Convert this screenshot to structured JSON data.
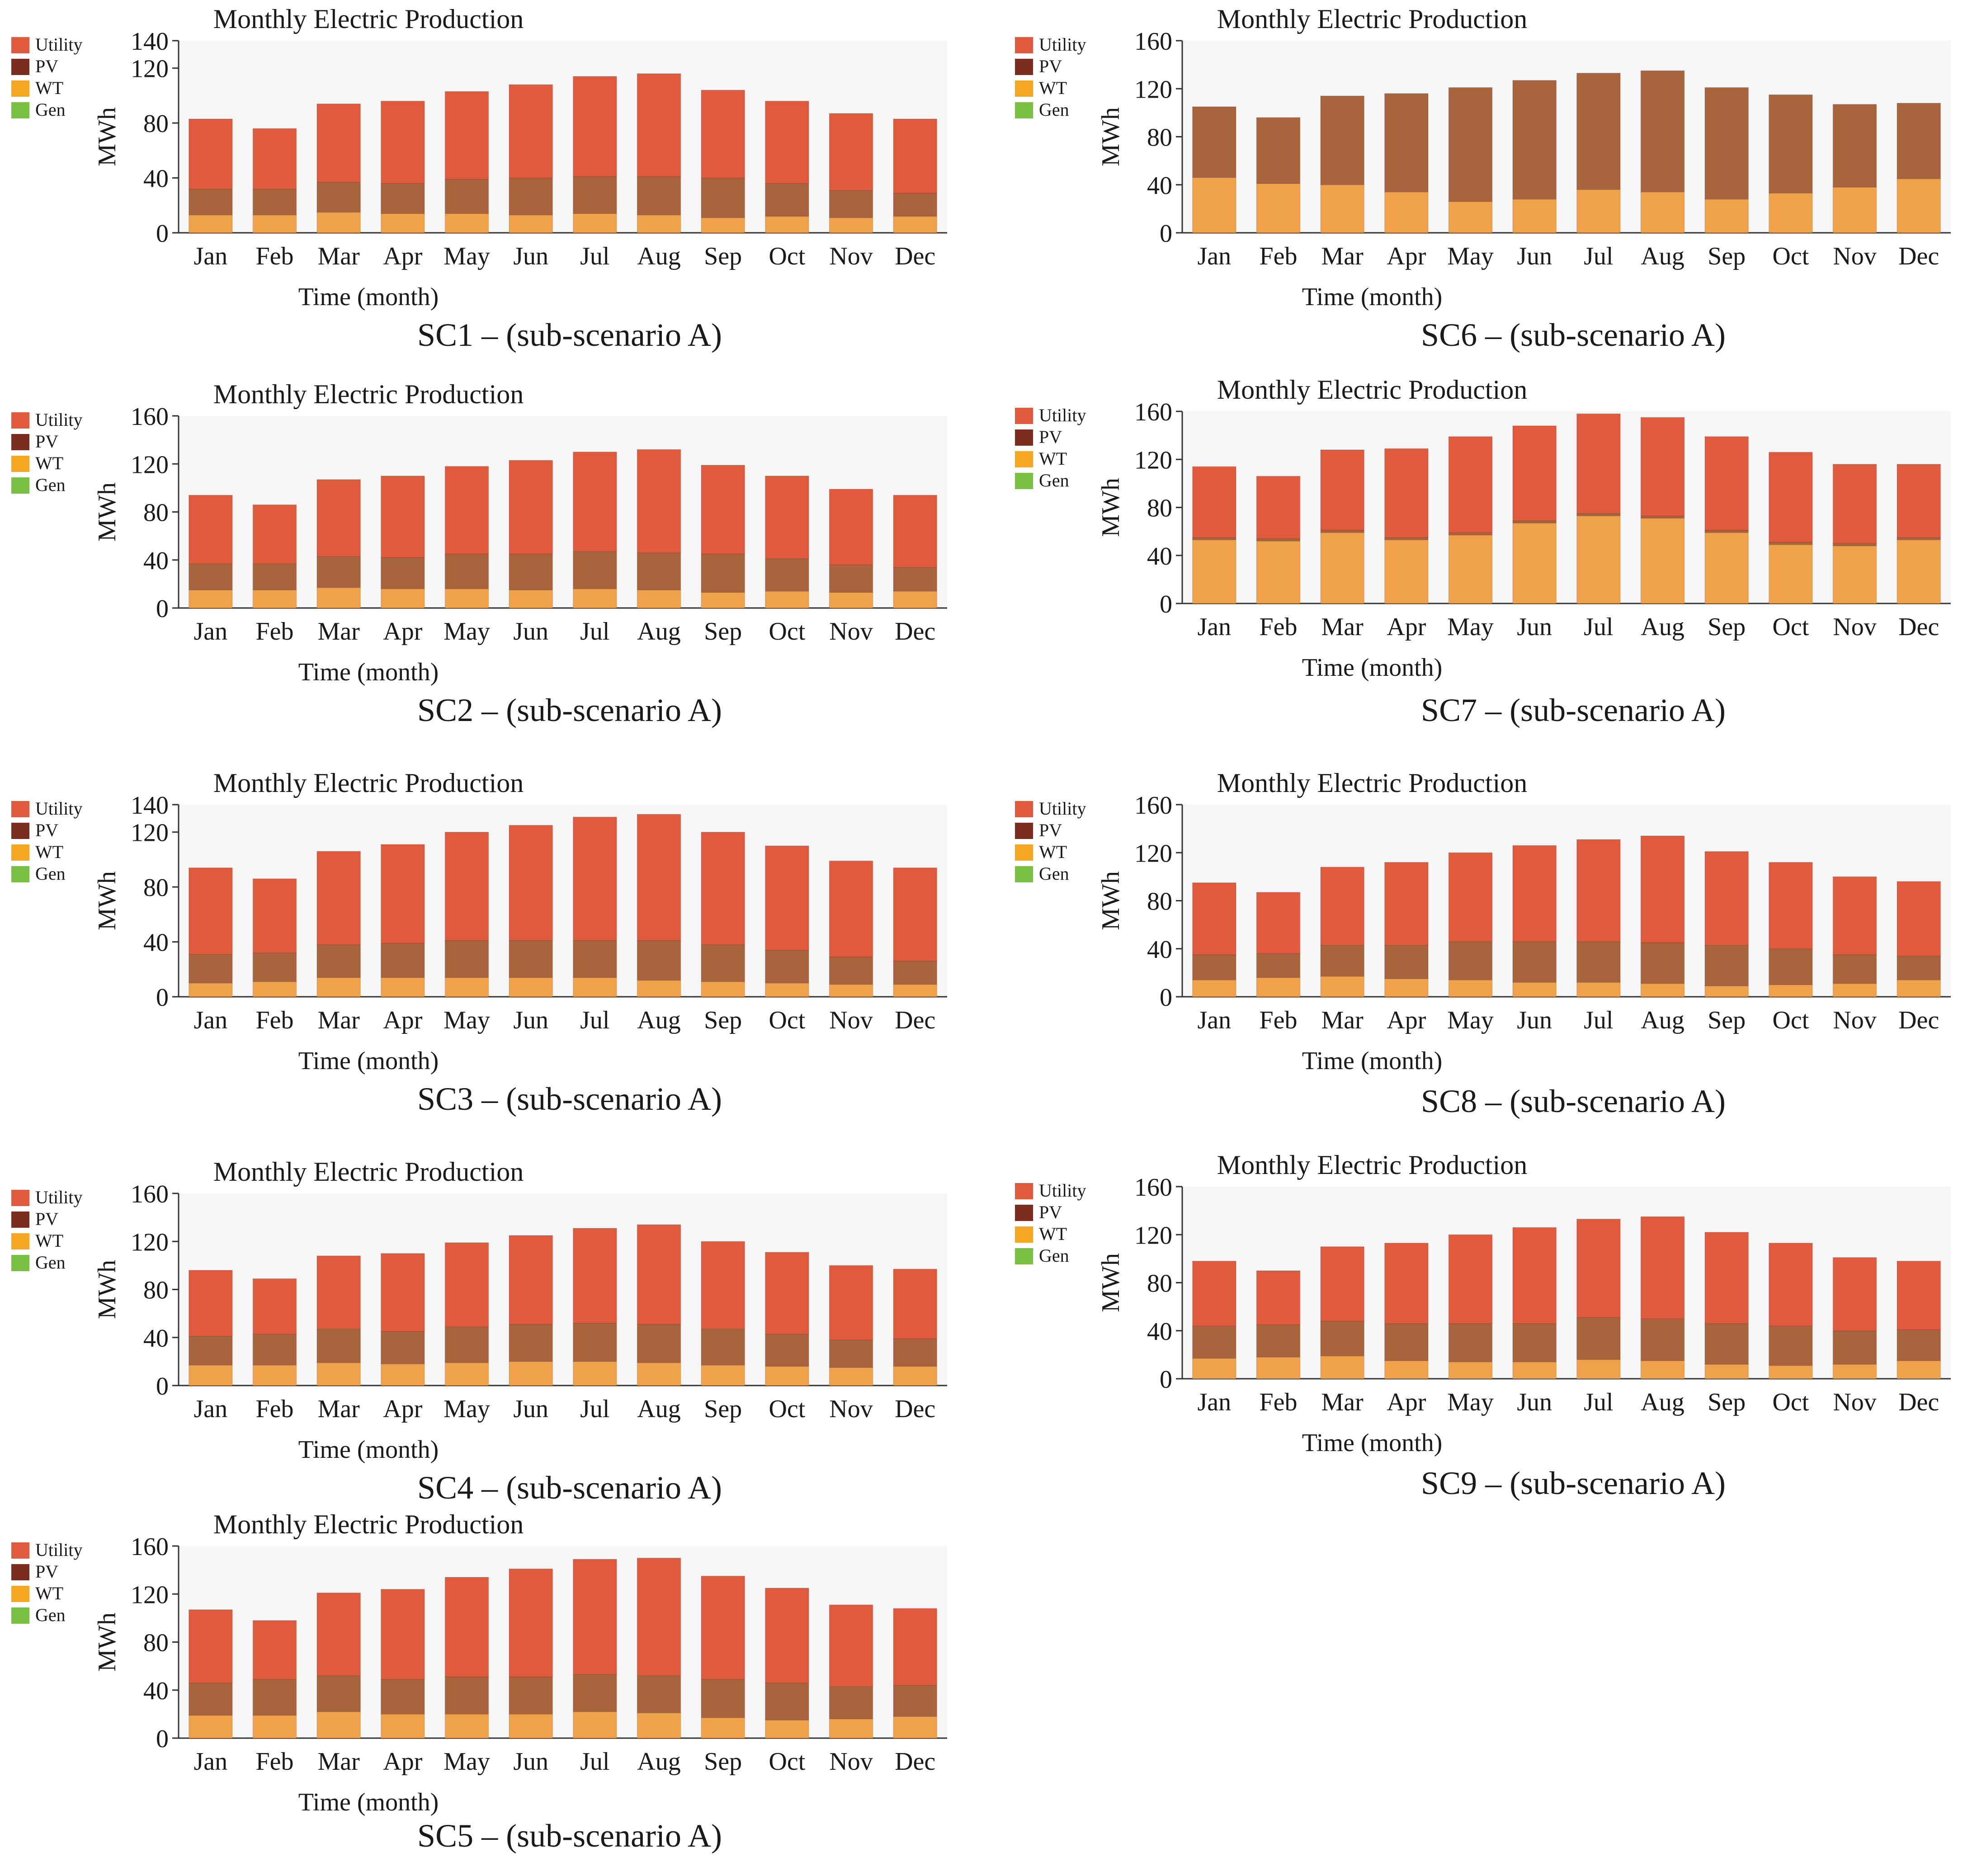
{
  "colors": {
    "utility": "#e05b3d",
    "pv": "#a8643d",
    "wt": "#f0a24a",
    "gen": "#7ac143",
    "legend_utility": "#e05b3d",
    "legend_pv": "#7b2e1f",
    "legend_wt": "#f5a623",
    "legend_gen": "#7ac143",
    "plot_bg": "#f6f6f6"
  },
  "legend": [
    "Utility",
    "PV",
    "WT",
    "Gen"
  ],
  "chart_data": [
    {
      "type": "bar",
      "stacked": true,
      "panel": "SC1",
      "title": "Monthly Electric Production",
      "xlabel": "Time (month)",
      "ylabel": "MWh",
      "caption": "SC1 – (sub-scenario A)",
      "ylim": [
        0,
        140
      ],
      "yticks": [
        0,
        40,
        80,
        120,
        140
      ],
      "categories": [
        "Jan",
        "Feb",
        "Mar",
        "Apr",
        "May",
        "Jun",
        "Jul",
        "Aug",
        "Sep",
        "Oct",
        "Nov",
        "Dec"
      ],
      "series": [
        {
          "name": "WT",
          "values": [
            13,
            13,
            15,
            14,
            14,
            13,
            14,
            13,
            11,
            12,
            11,
            12
          ]
        },
        {
          "name": "PV",
          "values": [
            19,
            19,
            22,
            22,
            25,
            27,
            27,
            28,
            29,
            24,
            20,
            17
          ]
        },
        {
          "name": "Utility",
          "values": [
            51,
            44,
            57,
            60,
            64,
            68,
            73,
            75,
            64,
            60,
            56,
            54
          ]
        }
      ]
    },
    {
      "type": "bar",
      "stacked": true,
      "panel": "SC2",
      "title": "Monthly Electric Production",
      "xlabel": "Time (month)",
      "ylabel": "MWh",
      "caption": "SC2 – (sub-scenario A)",
      "ylim": [
        0,
        160
      ],
      "yticks": [
        0,
        40,
        80,
        120,
        160
      ],
      "categories": [
        "Jan",
        "Feb",
        "Mar",
        "Apr",
        "May",
        "Jun",
        "Jul",
        "Aug",
        "Sep",
        "Oct",
        "Nov",
        "Dec"
      ],
      "series": [
        {
          "name": "WT",
          "values": [
            15,
            15,
            17,
            16,
            16,
            15,
            16,
            15,
            13,
            14,
            13,
            14
          ]
        },
        {
          "name": "PV",
          "values": [
            22,
            22,
            26,
            26,
            29,
            30,
            31,
            31,
            32,
            27,
            23,
            20
          ]
        },
        {
          "name": "Utility",
          "values": [
            57,
            49,
            64,
            68,
            73,
            78,
            83,
            86,
            74,
            69,
            63,
            60
          ]
        }
      ]
    },
    {
      "type": "bar",
      "stacked": true,
      "panel": "SC3",
      "title": "Monthly Electric Production",
      "xlabel": "Time (month)",
      "ylabel": "MWh",
      "caption": "SC3 – (sub-scenario A)",
      "ylim": [
        0,
        140
      ],
      "yticks": [
        0,
        40,
        80,
        120,
        140
      ],
      "categories": [
        "Jan",
        "Feb",
        "Mar",
        "Apr",
        "May",
        "Jun",
        "Jul",
        "Aug",
        "Sep",
        "Oct",
        "Nov",
        "Dec"
      ],
      "series": [
        {
          "name": "WT",
          "values": [
            10,
            11,
            14,
            14,
            14,
            14,
            14,
            12,
            11,
            10,
            9,
            9
          ]
        },
        {
          "name": "PV",
          "values": [
            21,
            21,
            24,
            25,
            27,
            27,
            27,
            29,
            27,
            24,
            20,
            17
          ]
        },
        {
          "name": "Utility",
          "values": [
            63,
            54,
            68,
            72,
            79,
            84,
            90,
            92,
            82,
            76,
            70,
            68
          ]
        }
      ]
    },
    {
      "type": "bar",
      "stacked": true,
      "panel": "SC4",
      "title": "Monthly Electric Production",
      "xlabel": "Time (month)",
      "ylabel": "MWh",
      "caption": "SC4 – (sub-scenario A)",
      "ylim": [
        0,
        160
      ],
      "yticks": [
        0,
        40,
        80,
        120,
        160
      ],
      "categories": [
        "Jan",
        "Feb",
        "Mar",
        "Apr",
        "May",
        "Jun",
        "Jul",
        "Aug",
        "Sep",
        "Oct",
        "Nov",
        "Dec"
      ],
      "series": [
        {
          "name": "WT",
          "values": [
            17,
            17,
            19,
            18,
            19,
            20,
            20,
            19,
            17,
            16,
            15,
            16
          ]
        },
        {
          "name": "PV",
          "values": [
            24,
            26,
            28,
            27,
            30,
            31,
            32,
            32,
            30,
            27,
            23,
            23
          ]
        },
        {
          "name": "Utility",
          "values": [
            55,
            46,
            61,
            65,
            70,
            74,
            79,
            83,
            73,
            68,
            62,
            58
          ]
        }
      ]
    },
    {
      "type": "bar",
      "stacked": true,
      "panel": "SC5",
      "title": "Monthly Electric Production",
      "xlabel": "Time (month)",
      "ylabel": "MWh",
      "caption": "SC5 – (sub-scenario A)",
      "ylim": [
        0,
        160
      ],
      "yticks": [
        0,
        40,
        80,
        120,
        160
      ],
      "categories": [
        "Jan",
        "Feb",
        "Mar",
        "Apr",
        "May",
        "Jun",
        "Jul",
        "Aug",
        "Sep",
        "Oct",
        "Nov",
        "Dec"
      ],
      "series": [
        {
          "name": "WT",
          "values": [
            19,
            19,
            22,
            20,
            20,
            20,
            22,
            21,
            17,
            15,
            16,
            18
          ]
        },
        {
          "name": "PV",
          "values": [
            27,
            30,
            30,
            29,
            31,
            31,
            31,
            31,
            32,
            31,
            27,
            26
          ]
        },
        {
          "name": "Utility",
          "values": [
            61,
            49,
            69,
            75,
            83,
            90,
            96,
            98,
            86,
            79,
            68,
            64
          ]
        }
      ]
    },
    {
      "type": "bar",
      "stacked": true,
      "panel": "SC6",
      "title": "Monthly Electric Production",
      "xlabel": "Time (month)",
      "ylabel": "MWh",
      "caption": "SC6 – (sub-scenario A)",
      "ylim": [
        0,
        160
      ],
      "yticks": [
        0,
        40,
        80,
        120,
        160
      ],
      "categories": [
        "Jan",
        "Feb",
        "Mar",
        "Apr",
        "May",
        "Jun",
        "Jul",
        "Aug",
        "Sep",
        "Oct",
        "Nov",
        "Dec"
      ],
      "series": [
        {
          "name": "WT",
          "values": [
            46,
            41,
            40,
            34,
            26,
            28,
            36,
            34,
            28,
            33,
            38,
            45
          ]
        },
        {
          "name": "PV",
          "values": [
            59,
            55,
            74,
            82,
            95,
            99,
            97,
            101,
            93,
            82,
            69,
            63
          ]
        }
      ]
    },
    {
      "type": "bar",
      "stacked": true,
      "panel": "SC7",
      "title": "Monthly Electric Production",
      "xlabel": "Time (month)",
      "ylabel": "MWh",
      "caption": "SC7 – (sub-scenario A)",
      "ylim": [
        0,
        160
      ],
      "yticks": [
        0,
        40,
        80,
        120,
        160
      ],
      "categories": [
        "Jan",
        "Feb",
        "Mar",
        "Apr",
        "May",
        "Jun",
        "Jul",
        "Aug",
        "Sep",
        "Oct",
        "Nov",
        "Dec"
      ],
      "series": [
        {
          "name": "WT",
          "values": [
            53,
            52,
            59,
            53,
            57,
            67,
            73,
            71,
            59,
            49,
            48,
            53
          ]
        },
        {
          "name": "PV",
          "values": [
            2,
            2,
            2,
            2,
            2,
            2,
            2,
            2,
            2,
            2,
            2,
            2
          ]
        },
        {
          "name": "Utility",
          "values": [
            59,
            52,
            67,
            74,
            80,
            79,
            83,
            82,
            78,
            75,
            66,
            61
          ]
        }
      ]
    },
    {
      "type": "bar",
      "stacked": true,
      "panel": "SC8",
      "title": "Monthly Electric Production",
      "xlabel": "Time (month)",
      "ylabel": "MWh",
      "caption": "SC8 – (sub-scenario A)",
      "ylim": [
        0,
        160
      ],
      "yticks": [
        0,
        40,
        80,
        120,
        160
      ],
      "categories": [
        "Jan",
        "Feb",
        "Mar",
        "Apr",
        "May",
        "Jun",
        "Jul",
        "Aug",
        "Sep",
        "Oct",
        "Nov",
        "Dec"
      ],
      "series": [
        {
          "name": "WT",
          "values": [
            14,
            16,
            17,
            15,
            14,
            12,
            12,
            11,
            9,
            10,
            11,
            14
          ]
        },
        {
          "name": "PV",
          "values": [
            21,
            20,
            26,
            28,
            32,
            34,
            34,
            34,
            34,
            30,
            24,
            20
          ]
        },
        {
          "name": "Utility",
          "values": [
            60,
            51,
            65,
            69,
            74,
            80,
            85,
            89,
            78,
            72,
            65,
            62
          ]
        }
      ]
    },
    {
      "type": "bar",
      "stacked": true,
      "panel": "SC9",
      "title": "Monthly Electric Production",
      "xlabel": "Time (month)",
      "ylabel": "MWh",
      "caption": "SC9 – (sub-scenario A)",
      "ylim": [
        0,
        160
      ],
      "yticks": [
        0,
        40,
        80,
        120,
        160
      ],
      "categories": [
        "Jan",
        "Feb",
        "Mar",
        "Apr",
        "May",
        "Jun",
        "Jul",
        "Aug",
        "Sep",
        "Oct",
        "Nov",
        "Dec"
      ],
      "series": [
        {
          "name": "WT",
          "values": [
            17,
            18,
            19,
            15,
            14,
            14,
            16,
            15,
            12,
            11,
            12,
            15
          ]
        },
        {
          "name": "PV",
          "values": [
            27,
            27,
            29,
            31,
            32,
            32,
            35,
            35,
            34,
            33,
            28,
            26
          ]
        },
        {
          "name": "Utility",
          "values": [
            54,
            45,
            62,
            67,
            74,
            80,
            82,
            85,
            76,
            69,
            61,
            57
          ]
        }
      ]
    }
  ]
}
